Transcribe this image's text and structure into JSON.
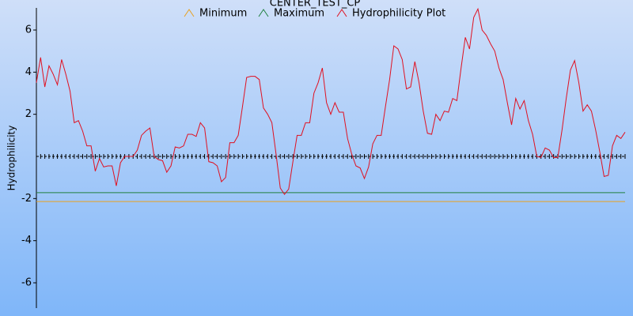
{
  "chart_data": {
    "type": "line",
    "title": "CENTER_TEST_CP",
    "y_label": "Hydrophilicity",
    "ylim": [
      -7.2,
      7.05
    ],
    "yticks": [
      -6,
      -4,
      -2,
      2,
      4,
      6
    ],
    "baseline": 0,
    "series": [
      {
        "name": "Minimum",
        "color": "#e8a020",
        "value": -2.14
      },
      {
        "name": "Maximum",
        "color": "#208040",
        "value": -1.72
      },
      {
        "name": "Hydrophilicity Plot",
        "color": "#e01020",
        "values": [
          3.5,
          4.7,
          3.3,
          4.3,
          3.9,
          3.4,
          4.6,
          3.9,
          3.1,
          1.6,
          1.7,
          1.2,
          0.5,
          0.5,
          -0.7,
          -0.1,
          -0.5,
          -0.45,
          -0.45,
          -1.4,
          -0.3,
          0,
          0,
          0,
          0.3,
          1.0,
          1.2,
          1.35,
          0,
          -0.15,
          -0.2,
          -0.75,
          -0.45,
          0.45,
          0.4,
          0.5,
          1.05,
          1.05,
          0.95,
          1.6,
          1.35,
          -0.25,
          -0.3,
          -0.45,
          -1.2,
          -1.0,
          0.65,
          0.65,
          1.0,
          2.35,
          3.75,
          3.8,
          3.8,
          3.65,
          2.3,
          2.0,
          1.6,
          0.1,
          -1.5,
          -1.8,
          -1.55,
          -0.25,
          1.0,
          1.0,
          1.6,
          1.6,
          3.0,
          3.5,
          4.2,
          2.55,
          2.0,
          2.55,
          2.1,
          2.1,
          0.85,
          0.1,
          -0.45,
          -0.55,
          -1.05,
          -0.5,
          0.6,
          1.0,
          1.0,
          2.35,
          3.65,
          5.25,
          5.1,
          4.6,
          3.2,
          3.3,
          4.5,
          3.5,
          2.15,
          1.1,
          1.05,
          2.0,
          1.7,
          2.15,
          2.1,
          2.75,
          2.65,
          4.2,
          5.65,
          5.1,
          6.6,
          7.0,
          6.0,
          5.75,
          5.35,
          5.0,
          4.2,
          3.65,
          2.55,
          1.5,
          2.75,
          2.25,
          2.65,
          1.7,
          1.05,
          0,
          -0.05,
          0.4,
          0.3,
          -0.05,
          -0.05,
          1.25,
          2.75,
          4.1,
          4.55,
          3.5,
          2.15,
          2.45,
          2.15,
          1.25,
          0.2,
          -0.95,
          -0.9,
          0.5,
          1.0,
          0.85,
          1.15
        ]
      }
    ]
  }
}
